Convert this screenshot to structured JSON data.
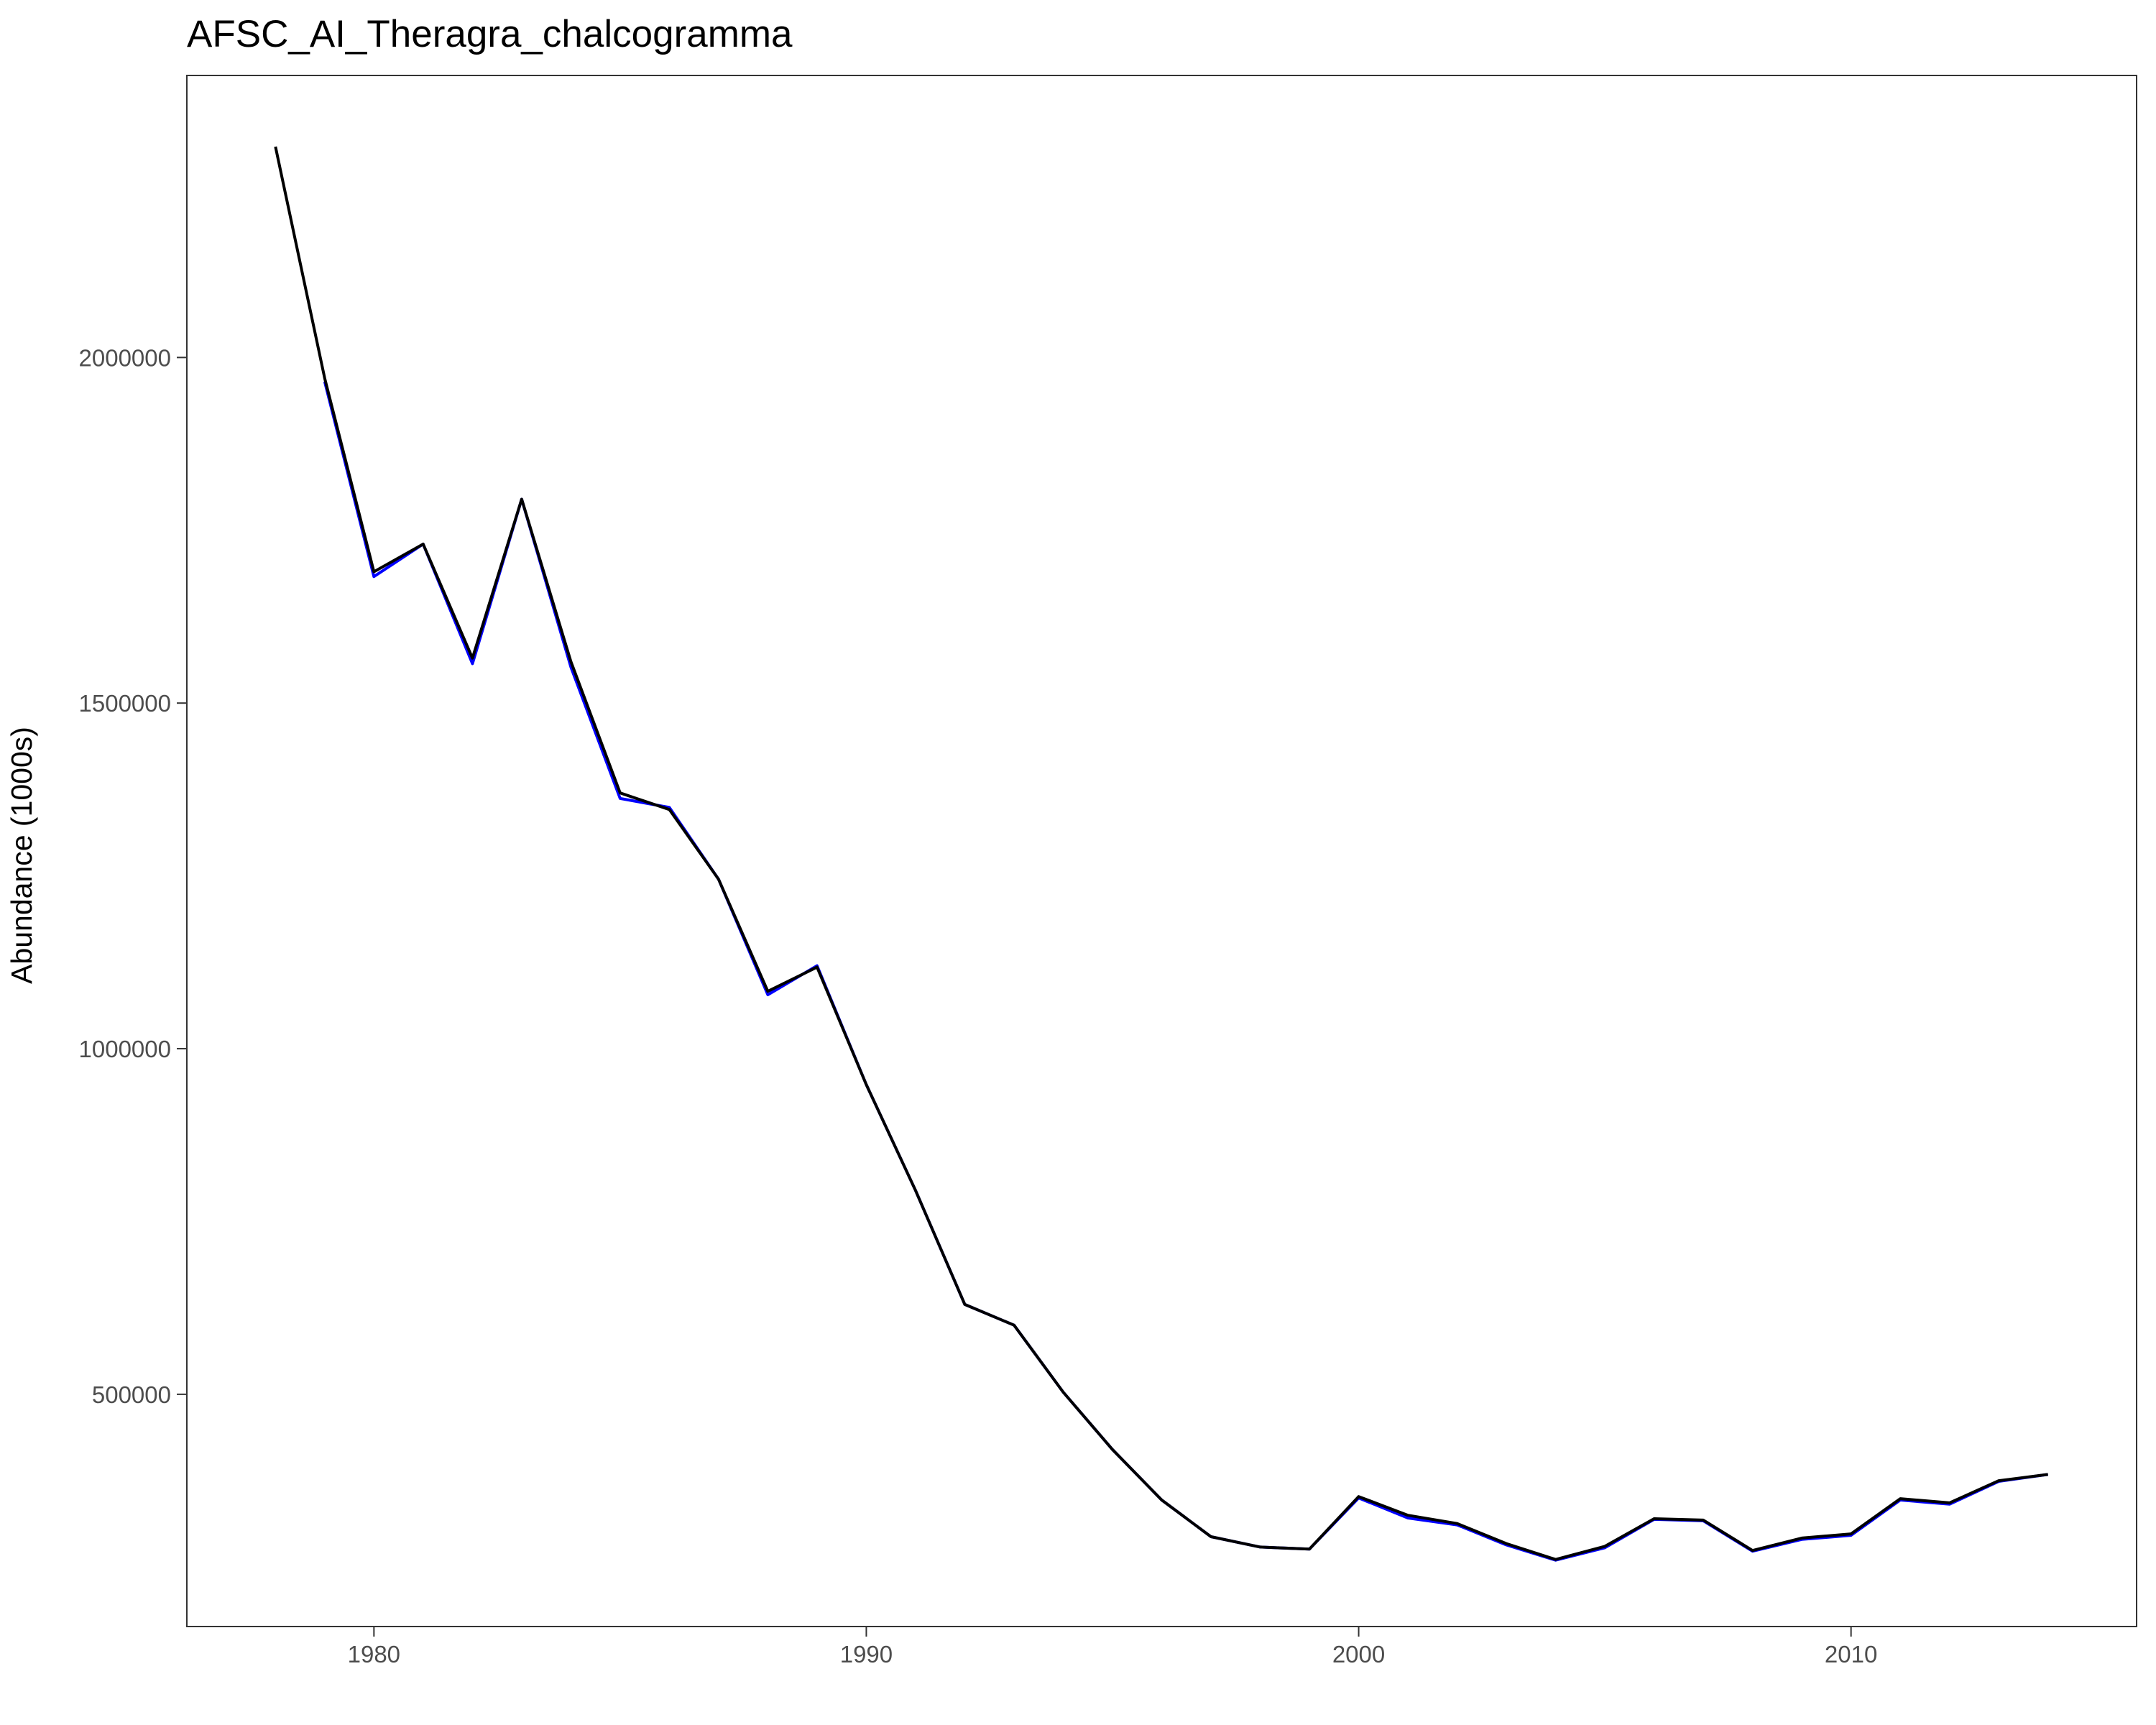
{
  "chart_data": {
    "type": "line",
    "title": "AFSC_AI_Theragra_chalcogramma",
    "xlabel": "",
    "ylabel": "Abundance (1000s)",
    "xlim": [
      1976.2,
      2015.8
    ],
    "ylim": [
      164000,
      2408000
    ],
    "x_ticks": [
      1980,
      1990,
      2000,
      2010
    ],
    "y_ticks": [
      500000,
      1000000,
      1500000,
      2000000
    ],
    "grid": false,
    "legend": "none",
    "series": [
      {
        "color": "#0000ff",
        "x": [
          1979,
          1980,
          1981,
          1982,
          1983,
          1984,
          1985,
          1986,
          1987,
          1988,
          1989,
          1990,
          1991,
          1992,
          1993,
          1994,
          1995,
          1996,
          1997,
          1998,
          1999,
          2000,
          2001,
          2002,
          2003,
          2004,
          2005,
          2006,
          2007,
          2008,
          2009,
          2010,
          2011,
          2012,
          2013,
          2014
        ],
        "values": [
          1965000,
          1683000,
          1730000,
          1557000,
          1795000,
          1552000,
          1362000,
          1349000,
          1245000,
          1078000,
          1120000,
          948000,
          795000,
          630000,
          600000,
          503000,
          420000,
          347000,
          294000,
          279000,
          276000,
          350000,
          321000,
          311000,
          282000,
          260000,
          278000,
          319000,
          317000,
          273000,
          290000,
          296000,
          347000,
          341000,
          374000,
          384000
        ]
      },
      {
        "color": "#000000",
        "x": [
          1978,
          1979,
          1980,
          1981,
          1982,
          1983,
          1984,
          1985,
          1986,
          1987,
          1988,
          1989,
          1990,
          1991,
          1992,
          1993,
          1994,
          1995,
          1996,
          1997,
          1998,
          1999,
          2000,
          2001,
          2002,
          2003,
          2004,
          2005,
          2006,
          2007,
          2008,
          2009,
          2010,
          2011,
          2012,
          2013,
          2014
        ],
        "values": [
          2305000,
          1970000,
          1690000,
          1730000,
          1565000,
          1795000,
          1560000,
          1370000,
          1346000,
          1245000,
          1083000,
          1118000,
          948000,
          795000,
          630000,
          600000,
          503000,
          420000,
          347000,
          294000,
          279000,
          276000,
          352000,
          325000,
          313000,
          284000,
          261000,
          280000,
          320000,
          318000,
          274000,
          292000,
          298000,
          349000,
          343000,
          375000,
          384000
        ]
      }
    ]
  }
}
